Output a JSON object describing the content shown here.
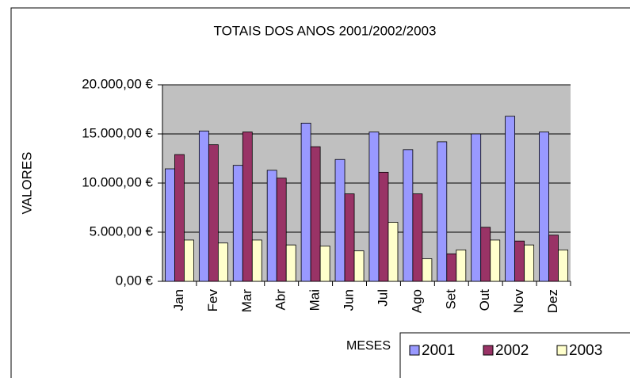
{
  "chart_data": {
    "type": "bar",
    "title": "TOTAIS DOS ANOS 2001/2002/2003",
    "x_label": "MESES",
    "y_label": "VALORES",
    "categories": [
      "Jan",
      "Fev",
      "Mar",
      "Abr",
      "Mai",
      "Jun",
      "Jul",
      "Ago",
      "Set",
      "Out",
      "Nov",
      "Dez"
    ],
    "series": [
      {
        "name": "2001",
        "color": "#9999ff",
        "values": [
          11450,
          15300,
          11800,
          11300,
          16100,
          12400,
          15200,
          13400,
          14200,
          15000,
          16800,
          15200
        ]
      },
      {
        "name": "2002",
        "color": "#993366",
        "values": [
          12900,
          13900,
          15200,
          10500,
          13700,
          8900,
          11100,
          8900,
          2800,
          5500,
          4100,
          4700
        ]
      },
      {
        "name": "2003",
        "color": "#ffffcc",
        "values": [
          4200,
          3900,
          4200,
          3700,
          3600,
          3100,
          6000,
          2300,
          3200,
          4200,
          3700,
          3200
        ]
      }
    ],
    "ylim": [
      0,
      20000
    ],
    "yticks": [
      {
        "value": 0,
        "label": "0,00 €"
      },
      {
        "value": 5000,
        "label": "5.000,00 €"
      },
      {
        "value": 10000,
        "label": "10.000,00 €"
      },
      {
        "value": 15000,
        "label": "15.000,00 €"
      },
      {
        "value": 20000,
        "label": "20.000,00 €"
      }
    ],
    "grid": true,
    "legend": "bottom-right"
  }
}
